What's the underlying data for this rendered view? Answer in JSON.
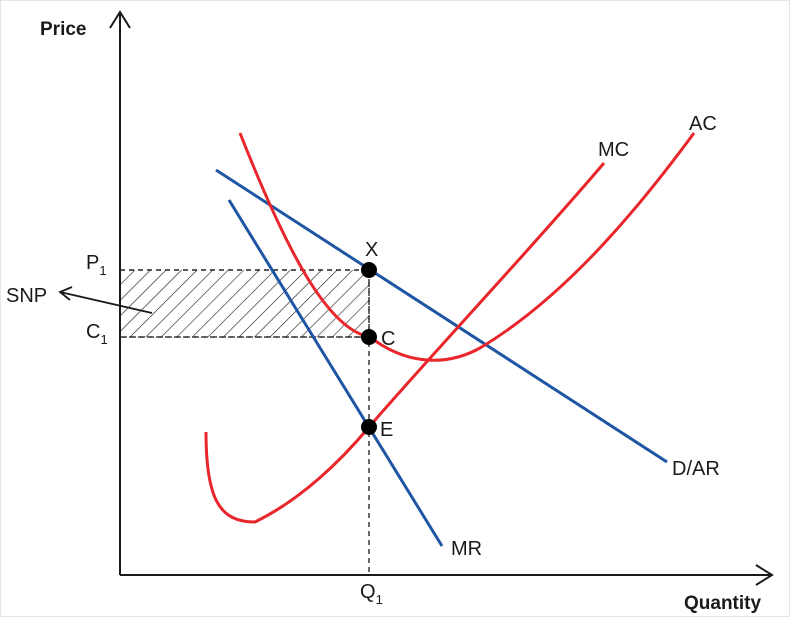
{
  "axes": {
    "y_title": "Price",
    "x_title": "Quantity"
  },
  "labels": {
    "p1_main": "P",
    "p1_sub": "1",
    "c1_main": "C",
    "c1_sub": "1",
    "q1_main": "Q",
    "q1_sub": "1",
    "snp": "SNP",
    "point_x": "X",
    "point_c": "C",
    "point_e": "E"
  },
  "curves": {
    "mc": {
      "label": "MC",
      "color": "#e8262b"
    },
    "ac": {
      "label": "AC",
      "color": "#e8262b"
    },
    "demand": {
      "label": "D/AR",
      "color": "#1f56a4"
    },
    "mr": {
      "label": "MR",
      "color": "#1f56a4"
    }
  },
  "colors": {
    "axis": "#1a1a1a",
    "hatch": "#1a1a1a"
  }
}
